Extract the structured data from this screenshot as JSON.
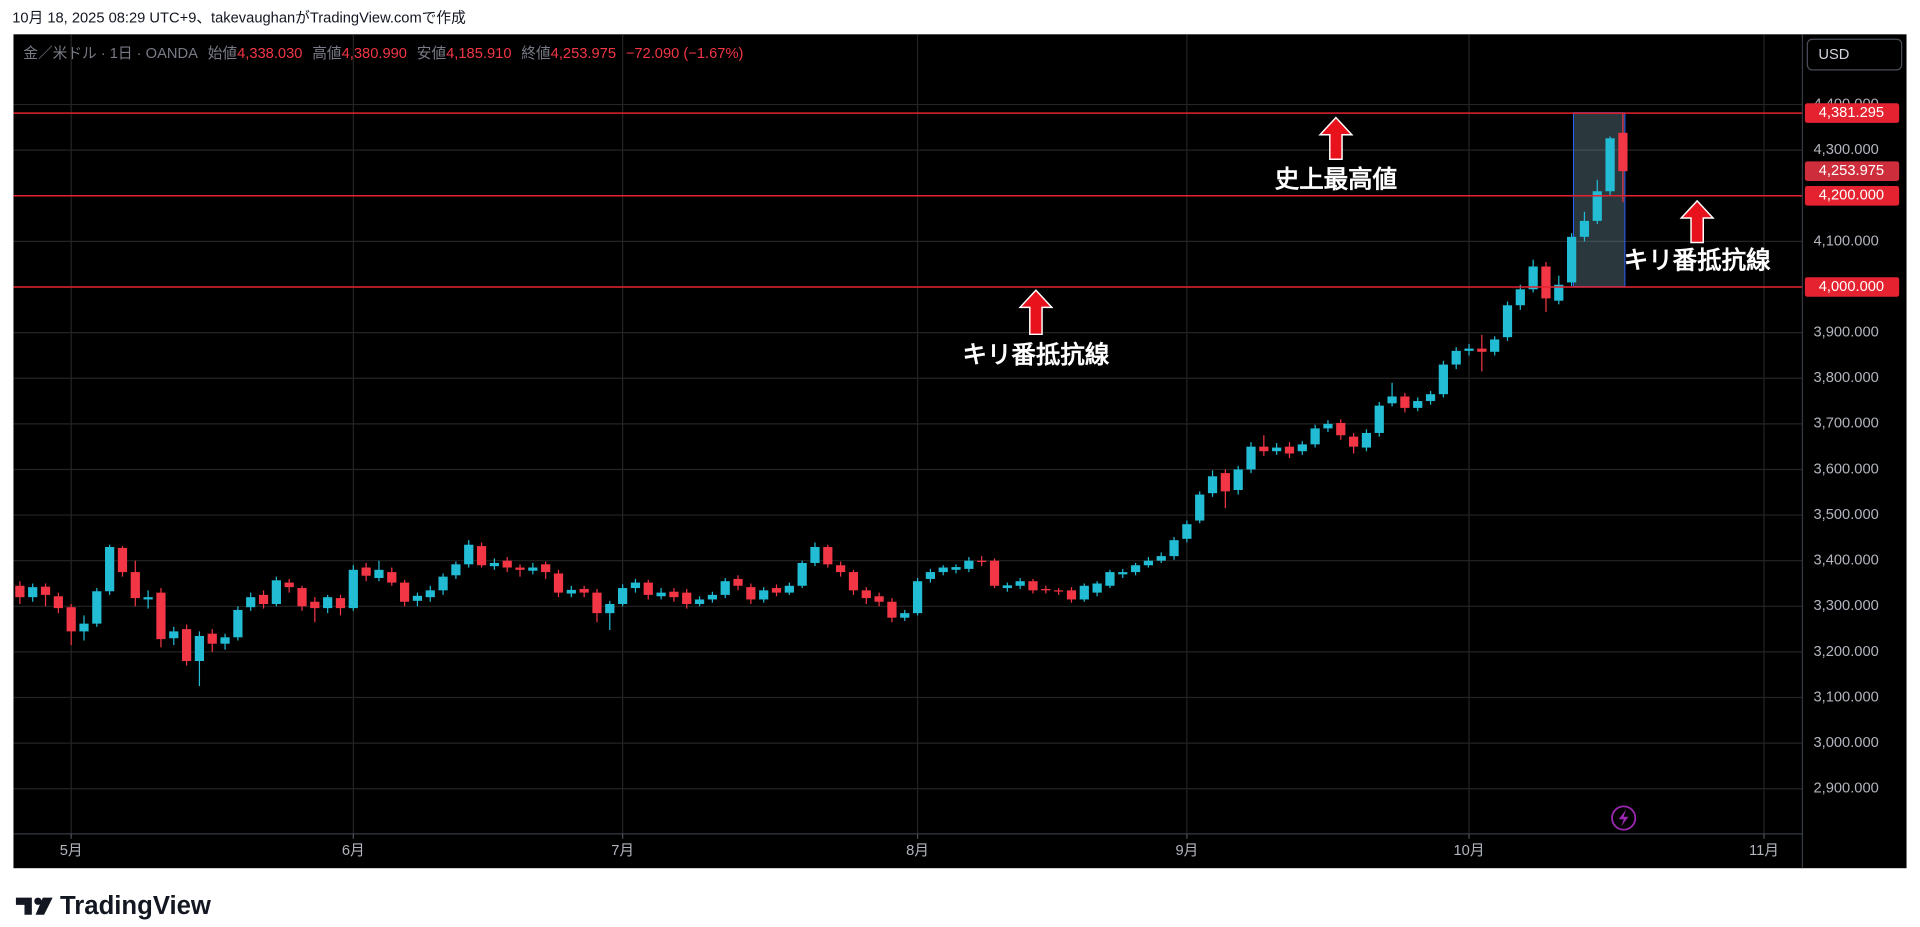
{
  "header": {
    "text": "10月 18, 2025 08:29 UTC+9、takevaughanがTradingView.comで作成"
  },
  "chart_data": {
    "type": "candlestick",
    "symbol": "金／米ドル · 1日 · OANDA",
    "ohlc_legend": [
      {
        "label": "始値",
        "value": "4,338.030"
      },
      {
        "label": "高値",
        "value": "4,380.990"
      },
      {
        "label": "安値",
        "value": "4,185.910"
      },
      {
        "label": "終値",
        "value": "4,253.975"
      }
    ],
    "change": "−72.090 (−1.67%)",
    "currency": "USD",
    "up_color": "#22bcd4",
    "down_color": "#f23645",
    "hline_color": "#e5222f",
    "grid": true,
    "open": [
      3345,
      3320,
      3343,
      3322,
      3298,
      3245,
      3262,
      3333,
      3428,
      3375,
      3315,
      3330,
      3230,
      3250,
      3180,
      3240,
      3218,
      3232,
      3298,
      3325,
      3305,
      3352,
      3340,
      3310,
      3296,
      3318,
      3296,
      3385,
      3362,
      3375,
      3352,
      3312,
      3320,
      3335,
      3368,
      3392,
      3432,
      3388,
      3400,
      3385,
      3378,
      3392,
      3372,
      3328,
      3338,
      3330,
      3285,
      3305,
      3340,
      3352,
      3322,
      3332,
      3330,
      3305,
      3315,
      3325,
      3360,
      3342,
      3315,
      3340,
      3330,
      3345,
      3395,
      3430,
      3390,
      3375,
      3335,
      3322,
      3310,
      3275,
      3285,
      3360,
      3375,
      3380,
      3382,
      3400,
      3400,
      3340,
      3345,
      3355,
      3338,
      3335,
      3335,
      3315,
      3330,
      3345,
      3370,
      3375,
      3390,
      3400,
      3410,
      3448,
      3488,
      3548,
      3592,
      3555,
      3600,
      3650,
      3640,
      3650,
      3640,
      3655,
      3690,
      3702,
      3672,
      3648,
      3680,
      3745,
      3760,
      3735,
      3750,
      3765,
      3830,
      3860,
      3865,
      3858,
      3890,
      3960,
      3995,
      4045,
      3970,
      4010,
      4110,
      4145,
      4210,
      4338.03
    ],
    "high": [
      3355,
      3350,
      3350,
      3330,
      3305,
      3280,
      3340,
      3435,
      3432,
      3400,
      3335,
      3340,
      3255,
      3260,
      3245,
      3250,
      3240,
      3300,
      3330,
      3335,
      3365,
      3360,
      3345,
      3320,
      3325,
      3325,
      3390,
      3395,
      3400,
      3385,
      3358,
      3330,
      3345,
      3372,
      3398,
      3445,
      3440,
      3405,
      3408,
      3392,
      3395,
      3398,
      3380,
      3345,
      3345,
      3338,
      3312,
      3348,
      3360,
      3358,
      3340,
      3340,
      3338,
      3322,
      3332,
      3362,
      3368,
      3350,
      3342,
      3348,
      3352,
      3400,
      3440,
      3435,
      3398,
      3380,
      3342,
      3330,
      3318,
      3292,
      3362,
      3382,
      3390,
      3392,
      3408,
      3410,
      3405,
      3352,
      3362,
      3360,
      3345,
      3340,
      3342,
      3350,
      3355,
      3380,
      3382,
      3395,
      3408,
      3418,
      3452,
      3488,
      3552,
      3598,
      3600,
      3608,
      3660,
      3675,
      3658,
      3660,
      3662,
      3698,
      3708,
      3710,
      3680,
      3688,
      3748,
      3790,
      3768,
      3758,
      3772,
      3838,
      3868,
      3875,
      3895,
      3892,
      3968,
      4005,
      4060,
      4055,
      4025,
      4118,
      4165,
      4235,
      4330,
      4380.99
    ],
    "low": [
      3305,
      3310,
      3300,
      3285,
      3215,
      3225,
      3255,
      3325,
      3365,
      3300,
      3295,
      3210,
      3215,
      3170,
      3125,
      3200,
      3205,
      3225,
      3290,
      3295,
      3300,
      3330,
      3290,
      3265,
      3285,
      3280,
      3290,
      3355,
      3355,
      3345,
      3300,
      3300,
      3310,
      3325,
      3360,
      3385,
      3385,
      3380,
      3375,
      3365,
      3370,
      3360,
      3320,
      3320,
      3320,
      3265,
      3248,
      3300,
      3330,
      3315,
      3315,
      3310,
      3295,
      3300,
      3308,
      3318,
      3335,
      3305,
      3308,
      3322,
      3325,
      3340,
      3388,
      3385,
      3365,
      3325,
      3305,
      3300,
      3265,
      3268,
      3280,
      3352,
      3368,
      3372,
      3375,
      3388,
      3340,
      3332,
      3338,
      3328,
      3328,
      3325,
      3308,
      3310,
      3322,
      3340,
      3362,
      3368,
      3385,
      3395,
      3402,
      3440,
      3482,
      3540,
      3515,
      3545,
      3592,
      3630,
      3632,
      3625,
      3632,
      3648,
      3682,
      3665,
      3635,
      3640,
      3672,
      3738,
      3725,
      3728,
      3742,
      3758,
      3820,
      3850,
      3815,
      3850,
      3882,
      3950,
      3988,
      3945,
      3962,
      4002,
      4100,
      4138,
      4200,
      4185.91
    ],
    "close": [
      3320,
      3342,
      3325,
      3296,
      3245,
      3262,
      3333,
      3430,
      3375,
      3318,
      3320,
      3228,
      3245,
      3180,
      3235,
      3218,
      3232,
      3292,
      3320,
      3305,
      3357,
      3342,
      3300,
      3296,
      3320,
      3296,
      3380,
      3367,
      3380,
      3352,
      3310,
      3323,
      3335,
      3365,
      3392,
      3435,
      3390,
      3395,
      3385,
      3380,
      3385,
      3375,
      3330,
      3336,
      3330,
      3285,
      3305,
      3340,
      3352,
      3325,
      3330,
      3320,
      3305,
      3315,
      3325,
      3355,
      3345,
      3315,
      3335,
      3330,
      3345,
      3395,
      3430,
      3392,
      3375,
      3335,
      3318,
      3310,
      3275,
      3285,
      3355,
      3375,
      3385,
      3386,
      3400,
      3397,
      3345,
      3346,
      3355,
      3335,
      3335,
      3333,
      3315,
      3345,
      3350,
      3375,
      3375,
      3390,
      3400,
      3410,
      3445,
      3480,
      3545,
      3585,
      3552,
      3600,
      3650,
      3640,
      3648,
      3635,
      3655,
      3690,
      3700,
      3675,
      3650,
      3680,
      3740,
      3760,
      3735,
      3750,
      3765,
      3830,
      3860,
      3865,
      3858,
      3885,
      3960,
      3995,
      4045,
      3975,
      4005,
      4110,
      4145,
      4210,
      4326,
      4253.975
    ],
    "xlim": [
      -0.5,
      139
    ],
    "xticks": [
      {
        "value": 4,
        "label": "5月"
      },
      {
        "value": 26,
        "label": "6月"
      },
      {
        "value": 47,
        "label": "7月"
      },
      {
        "value": 70,
        "label": "8月"
      },
      {
        "value": 91,
        "label": "9月"
      },
      {
        "value": 113,
        "label": "10月"
      },
      {
        "value": 136,
        "label": "11月"
      }
    ],
    "ylim": [
      2801,
      4554
    ],
    "yticks": [
      {
        "value": 2900,
        "label": "2,900.000"
      },
      {
        "value": 3000,
        "label": "3,000.000"
      },
      {
        "value": 3100,
        "label": "3,100.000"
      },
      {
        "value": 3200,
        "label": "3,200.000"
      },
      {
        "value": 3300,
        "label": "3,300.000"
      },
      {
        "value": 3400,
        "label": "3,400.000"
      },
      {
        "value": 3500,
        "label": "3,500.000"
      },
      {
        "value": 3600,
        "label": "3,600.000"
      },
      {
        "value": 3700,
        "label": "3,700.000"
      },
      {
        "value": 3800,
        "label": "3,800.000"
      },
      {
        "value": 3900,
        "label": "3,900.000"
      },
      {
        "value": 4000,
        "label": "4,000.000"
      },
      {
        "value": 4100,
        "label": "4,100.000"
      },
      {
        "value": 4200,
        "label": "4,200.000"
      },
      {
        "value": 4300,
        "label": "4,300.000"
      },
      {
        "value": 4400,
        "label": "4,400.000"
      }
    ],
    "hlines": [
      {
        "value": 4381.295,
        "label": "4,381.295"
      },
      {
        "value": 4200,
        "label": "4,200.000"
      },
      {
        "value": 4000,
        "label": "4,000.000"
      }
    ],
    "last_price": {
      "value": 4253.975,
      "label": "4,253.975"
    },
    "annotations": [
      {
        "text": "史上最高値"
      },
      {
        "text": "キリ番抵抗線"
      },
      {
        "text": "キリ番抵抗線"
      }
    ]
  },
  "footer": {
    "brand": "TradingView"
  }
}
